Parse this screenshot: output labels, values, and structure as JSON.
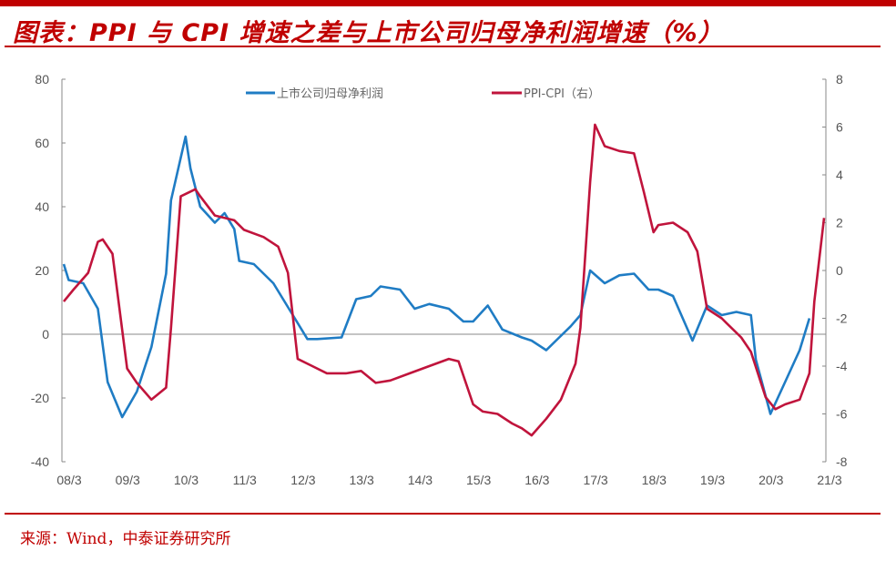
{
  "header": {
    "title": "图表：PPI 与 CPI 增速之差与上市公司归母净利润增速（%）"
  },
  "footer": {
    "source": "来源：Wind，中泰证券研究所"
  },
  "colors": {
    "accent": "#c00000",
    "blue": "#1f7cc4",
    "red": "#c0143c"
  },
  "chart_data": {
    "type": "line",
    "title": "PPI 与 CPI 增速之差与上市公司归母净利润增速（%）",
    "x_unit": "months since 2008/3",
    "x_tick_labels": [
      "08/3",
      "09/3",
      "10/3",
      "11/3",
      "12/3",
      "13/3",
      "14/3",
      "15/3",
      "16/3",
      "17/3",
      "18/3",
      "19/3",
      "20/3",
      "21/3"
    ],
    "xlim": [
      0,
      156
    ],
    "y_left": {
      "ticks": [
        "80",
        "60",
        "40",
        "20",
        "0",
        "-20",
        "-40"
      ],
      "ylim": [
        -40,
        80
      ]
    },
    "y_right": {
      "ticks": [
        "8",
        "6",
        "4",
        "2",
        "0",
        "-2",
        "-4",
        "-6",
        "-8"
      ],
      "ylim": [
        -8,
        8
      ]
    },
    "legend_position": "top-center",
    "series": [
      {
        "name": "上市公司归母净利润",
        "axis": "left",
        "color": "#1f7cc4",
        "x": [
          0,
          1,
          4,
          7,
          9,
          12,
          15,
          18,
          21,
          22,
          25,
          26,
          28,
          31,
          33,
          35,
          36,
          39,
          43,
          47,
          50,
          52,
          57,
          60,
          63,
          65,
          69,
          72,
          75,
          79,
          82,
          84,
          87,
          90,
          94,
          96,
          99,
          101,
          104,
          106,
          108,
          111,
          114,
          117,
          120,
          122,
          125,
          129,
          132,
          135,
          138,
          141,
          142,
          145,
          148,
          151,
          153
        ],
        "values": [
          22,
          17,
          16,
          8,
          -15,
          -26,
          -18,
          -4,
          19,
          42,
          62,
          52,
          40,
          35,
          38,
          33,
          23,
          22,
          16,
          6,
          -1.5,
          -1.5,
          -1,
          11,
          12,
          15,
          14,
          8,
          9.5,
          8,
          4,
          4,
          9,
          1.5,
          -1,
          -2,
          -5,
          -2,
          2.5,
          6,
          20,
          16,
          18.5,
          19,
          14,
          14,
          12,
          -2,
          9,
          6,
          7,
          6,
          -8,
          -25,
          -15,
          -5,
          5
        ]
      },
      {
        "name": "PPI-CPI（右）",
        "axis": "right",
        "color": "#c0143c",
        "x": [
          0,
          2,
          5,
          7,
          8,
          10,
          13,
          15,
          18,
          21,
          22,
          24,
          27,
          28,
          31,
          35,
          37,
          41,
          44,
          46,
          48,
          51,
          54,
          58,
          61,
          64,
          67,
          71,
          75,
          79,
          81,
          84,
          86,
          89,
          92,
          94,
          96,
          99,
          102,
          105,
          106,
          108,
          109,
          111,
          114,
          117,
          119,
          121,
          122,
          125,
          128,
          130,
          132,
          135,
          136,
          139,
          141,
          144,
          146,
          148,
          151,
          153,
          154,
          156
        ],
        "values": [
          -1.3,
          -0.8,
          -0.1,
          1.2,
          1.3,
          0.7,
          -4.1,
          -4.7,
          -5.4,
          -4.9,
          -2.4,
          3.1,
          3.4,
          3.1,
          2.3,
          2.1,
          1.7,
          1.4,
          1.0,
          -0.1,
          -3.7,
          -4.0,
          -4.3,
          -4.3,
          -4.2,
          -4.7,
          -4.6,
          -4.3,
          -4.0,
          -3.7,
          -3.8,
          -5.6,
          -5.9,
          -6.0,
          -6.4,
          -6.6,
          -6.9,
          -6.2,
          -5.4,
          -3.9,
          -2.4,
          3.7,
          6.1,
          5.2,
          5.0,
          4.9,
          3.3,
          1.6,
          1.9,
          2.0,
          1.6,
          0.8,
          -1.6,
          -2.0,
          -2.2,
          -2.8,
          -3.4,
          -5.3,
          -5.8,
          -5.6,
          -5.4,
          -4.3,
          -1.3,
          2.2
        ]
      }
    ]
  }
}
